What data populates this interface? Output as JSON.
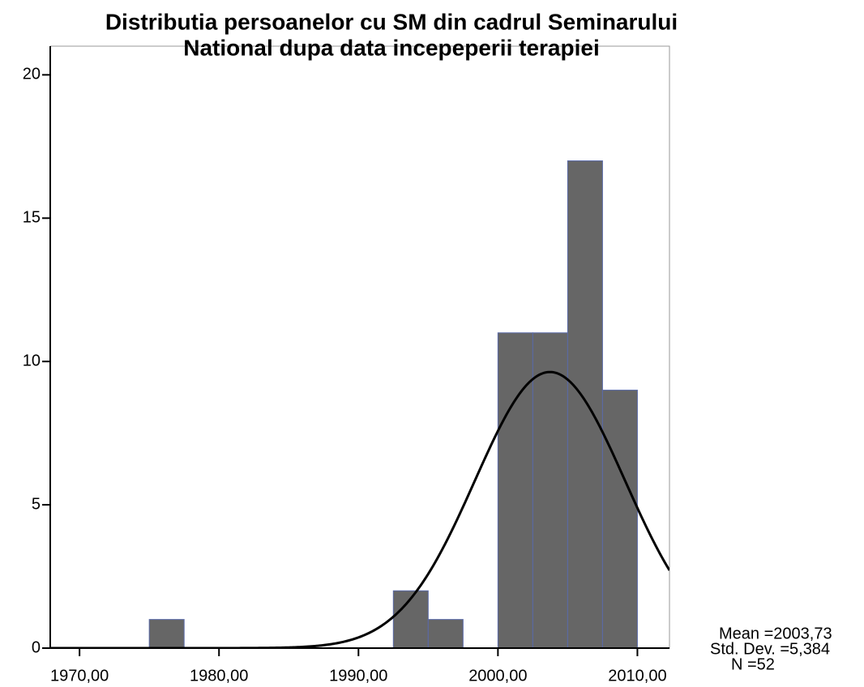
{
  "chart_data": {
    "type": "histogram",
    "title_lines": [
      "Distributia persoanelor cu SM din cadrul Seminarului",
      "National dupa data incepeperii terapiei"
    ],
    "bins": [
      1975,
      1977.5,
      1980,
      1982.5,
      1985,
      1987.5,
      1990,
      1992.5,
      1995,
      1997.5,
      2000,
      2002.5,
      2005,
      2007.5,
      2010
    ],
    "values": [
      1,
      0,
      0,
      0,
      0,
      0,
      0,
      2,
      1,
      0,
      11,
      11,
      17,
      9
    ],
    "color": "#666666",
    "xlim": [
      1967.9,
      2012.3
    ],
    "xticks": [
      {
        "value": 1970,
        "label": "1970,00"
      },
      {
        "value": 1980,
        "label": "1980,00"
      },
      {
        "value": 1990,
        "label": "1990,00"
      },
      {
        "value": 2000,
        "label": "2000,00"
      },
      {
        "value": 2010,
        "label": "2010,00"
      }
    ],
    "ylim": [
      0,
      21
    ],
    "yticks": [
      0,
      5,
      10,
      15,
      20
    ],
    "normal_curve": {
      "mean": 2003.73,
      "std_dev": 5.384,
      "n": 52
    },
    "stats_labels": [
      "Mean =2003,73",
      "Std. Dev. =5,384",
      "N =52"
    ]
  }
}
